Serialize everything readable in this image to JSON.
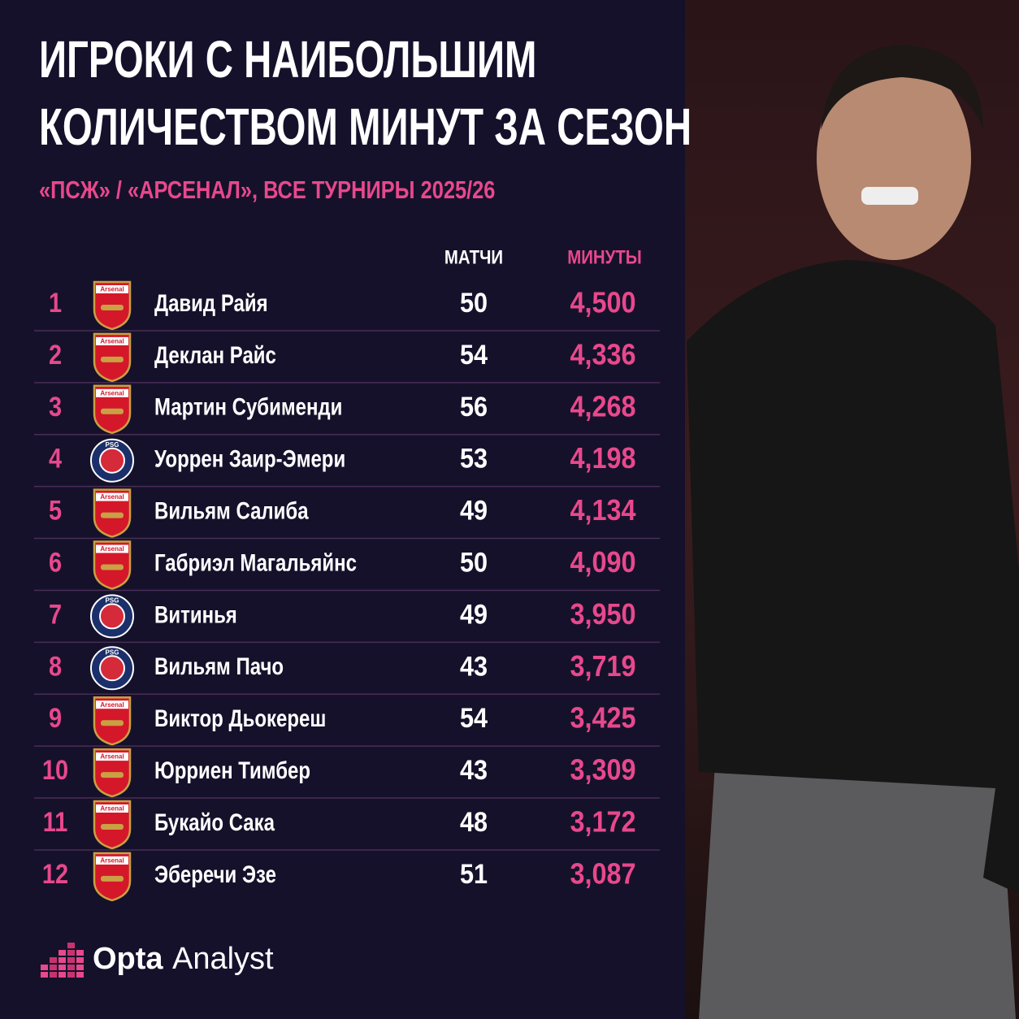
{
  "header": {
    "title": [
      "ИГРОКИ С НАИБОЛЬШИМ",
      "КОЛИЧЕСТВОМ МИНУТ ЗА СЕЗОН"
    ],
    "subtitle": "«ПСЖ» / «АРСЕНАЛ», ВСЕ ТУРНИРЫ 2025/26"
  },
  "table": {
    "columns": [
      "МАТЧИ",
      "МИНУТЫ"
    ],
    "rows": [
      [
        "1",
        "Arsenal",
        "Давид Райя",
        "50",
        "4,500"
      ],
      [
        "2",
        "Arsenal",
        "Деклан Райс",
        "54",
        "4,336"
      ],
      [
        "3",
        "Arsenal",
        "Мартин Субименди",
        "56",
        "4,268"
      ],
      [
        "4",
        "PSG",
        "Уоррен Заир-Эмери",
        "53",
        "4,198"
      ],
      [
        "5",
        "Arsenal",
        "Вильям Салиба",
        "49",
        "4,134"
      ],
      [
        "6",
        "Arsenal",
        "Габриэл Магальяйнс",
        "50",
        "4,090"
      ],
      [
        "7",
        "PSG",
        "Витинья",
        "49",
        "3,950"
      ],
      [
        "8",
        "PSG",
        "Вильям Пачо",
        "43",
        "3,719"
      ],
      [
        "9",
        "Arsenal",
        "Виктор Дьокереш",
        "54",
        "3,425"
      ],
      [
        "10",
        "Arsenal",
        "Юрриен Тимбер",
        "43",
        "3,309"
      ],
      [
        "11",
        "Arsenal",
        "Букайо Сака",
        "48",
        "3,172"
      ],
      [
        "12",
        "Arsenal",
        "Эберечи Эзе",
        "51",
        "3,087"
      ]
    ]
  },
  "footer": {
    "logo_bold": "Opta",
    "logo_light": "Analyst"
  }
}
